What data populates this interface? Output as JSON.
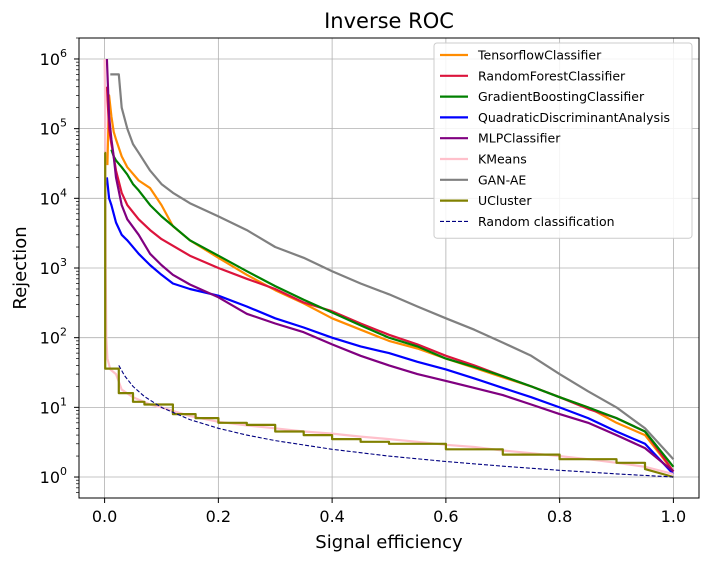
{
  "chart_data": {
    "type": "line",
    "title": "Inverse ROC",
    "xlabel": "Signal efficiency",
    "ylabel": "Rejection",
    "xlim": [
      -0.045,
      1.045
    ],
    "ylim": [
      0.5,
      2000000
    ],
    "yscale": "log",
    "grid": true,
    "legend_position": "top-right",
    "x_ticks": [
      {
        "value": 0.0,
        "label": "0.0"
      },
      {
        "value": 0.2,
        "label": "0.2"
      },
      {
        "value": 0.4,
        "label": "0.4"
      },
      {
        "value": 0.6,
        "label": "0.6"
      },
      {
        "value": 0.8,
        "label": "0.8"
      },
      {
        "value": 1.0,
        "label": "1.0"
      }
    ],
    "y_ticks": [
      {
        "value": 1,
        "base": "10",
        "exp": "0"
      },
      {
        "value": 10,
        "base": "10",
        "exp": "1"
      },
      {
        "value": 100,
        "base": "10",
        "exp": "2"
      },
      {
        "value": 1000,
        "base": "10",
        "exp": "3"
      },
      {
        "value": 10000,
        "base": "10",
        "exp": "4"
      },
      {
        "value": 100000,
        "base": "10",
        "exp": "5"
      },
      {
        "value": 1000000,
        "base": "10",
        "exp": "6"
      }
    ],
    "series": [
      {
        "name": "TensorflowClassifier",
        "color": "#ff8c00",
        "dash": "solid",
        "x": [
          0.005,
          0.008,
          0.012,
          0.016,
          0.02,
          0.03,
          0.04,
          0.06,
          0.08,
          0.1,
          0.12,
          0.15,
          0.2,
          0.25,
          0.3,
          0.35,
          0.4,
          0.45,
          0.5,
          0.55,
          0.6,
          0.65,
          0.7,
          0.75,
          0.8,
          0.85,
          0.9,
          0.95,
          1.0
        ],
        "y": [
          30000,
          300000,
          150000,
          90000,
          70000,
          40000,
          28000,
          18000,
          14000,
          8000,
          4000,
          2500,
          1400,
          800,
          480,
          310,
          190,
          130,
          90,
          70,
          50,
          37,
          27,
          20,
          14,
          10,
          6,
          4,
          1.2
        ]
      },
      {
        "name": "RandomForestClassifier",
        "color": "#dc143c",
        "dash": "solid",
        "x": [
          0.004,
          0.008,
          0.012,
          0.016,
          0.02,
          0.03,
          0.04,
          0.06,
          0.08,
          0.1,
          0.15,
          0.2,
          0.25,
          0.3,
          0.35,
          0.4,
          0.45,
          0.5,
          0.55,
          0.6,
          0.65,
          0.7,
          0.75,
          0.8,
          0.85,
          0.9,
          0.95,
          1.0
        ],
        "y": [
          400000,
          100000,
          60000,
          40000,
          25000,
          12000,
          8000,
          5000,
          3500,
          2600,
          1500,
          1000,
          700,
          500,
          320,
          240,
          160,
          110,
          80,
          55,
          40,
          28,
          20,
          14,
          9.5,
          7,
          4.5,
          1.2
        ]
      },
      {
        "name": "GradientBoostingClassifier",
        "color": "#008000",
        "dash": "solid",
        "x": [
          0.012,
          0.016,
          0.02,
          0.03,
          0.04,
          0.05,
          0.06,
          0.08,
          0.1,
          0.15,
          0.2,
          0.25,
          0.3,
          0.35,
          0.4,
          0.45,
          0.5,
          0.55,
          0.6,
          0.65,
          0.7,
          0.75,
          0.8,
          0.85,
          0.9,
          0.95,
          1.0
        ],
        "y": [
          50000,
          40000,
          35000,
          28000,
          22000,
          16000,
          13000,
          8000,
          5500,
          2500,
          1500,
          900,
          550,
          350,
          230,
          150,
          100,
          75,
          50,
          38,
          28,
          20,
          14,
          10,
          7,
          4.5,
          1.4
        ]
      },
      {
        "name": "QuadraticDiscriminantAnalysis",
        "color": "#0000ff",
        "dash": "solid",
        "x": [
          0.004,
          0.008,
          0.012,
          0.016,
          0.02,
          0.03,
          0.04,
          0.06,
          0.08,
          0.1,
          0.12,
          0.15,
          0.2,
          0.25,
          0.3,
          0.35,
          0.4,
          0.45,
          0.5,
          0.55,
          0.6,
          0.65,
          0.7,
          0.75,
          0.8,
          0.85,
          0.9,
          0.95,
          1.0
        ],
        "y": [
          20000,
          10000,
          8000,
          6000,
          4500,
          3000,
          2500,
          1600,
          1100,
          800,
          600,
          500,
          400,
          280,
          190,
          140,
          100,
          75,
          60,
          45,
          35,
          26,
          19,
          14,
          10,
          7,
          4.5,
          3,
          1.1
        ]
      },
      {
        "name": "MLPClassifier",
        "color": "#800080",
        "dash": "solid",
        "x": [
          0.004,
          0.008,
          0.012,
          0.016,
          0.02,
          0.03,
          0.04,
          0.06,
          0.08,
          0.1,
          0.12,
          0.15,
          0.2,
          0.25,
          0.3,
          0.35,
          0.4,
          0.45,
          0.5,
          0.55,
          0.6,
          0.65,
          0.7,
          0.75,
          0.8,
          0.85,
          0.9,
          0.95,
          1.0
        ],
        "y": [
          1000000,
          150000,
          70000,
          40000,
          20000,
          8000,
          5000,
          3000,
          1600,
          1100,
          800,
          580,
          380,
          220,
          160,
          120,
          80,
          55,
          40,
          30,
          24,
          19,
          15,
          11,
          8,
          6,
          4,
          2.6,
          1.2
        ]
      },
      {
        "name": "KMeans",
        "color": "#ffc0cb",
        "dash": "solid",
        "x": [
          0.0,
          0.001,
          0.002,
          0.003,
          0.005,
          0.01,
          0.02,
          0.03,
          0.05,
          0.08,
          0.1,
          0.15,
          0.2,
          0.25,
          0.3,
          0.35,
          0.4,
          0.45,
          0.5,
          0.55,
          0.6,
          0.65,
          0.7,
          0.75,
          0.8,
          0.85,
          0.9,
          0.95,
          1.0
        ],
        "y": [
          1000000,
          200000,
          1000,
          100,
          50,
          35,
          30,
          18,
          14,
          11,
          10,
          7.5,
          6.2,
          5.5,
          5,
          4.5,
          4.2,
          3.8,
          3.5,
          3.2,
          2.9,
          2.7,
          2.4,
          2.2,
          2,
          1.8,
          1.6,
          1.4,
          1.1
        ]
      },
      {
        "name": "GAN-AE",
        "color": "#808080",
        "dash": "solid",
        "x": [
          0.01,
          0.012,
          0.02,
          0.025,
          0.03,
          0.04,
          0.05,
          0.06,
          0.08,
          0.1,
          0.12,
          0.15,
          0.2,
          0.25,
          0.3,
          0.35,
          0.4,
          0.45,
          0.5,
          0.55,
          0.6,
          0.65,
          0.7,
          0.75,
          0.8,
          0.85,
          0.9,
          0.95,
          1.0
        ],
        "y": [
          600000,
          600000,
          600000,
          600000,
          200000,
          100000,
          60000,
          45000,
          25000,
          16000,
          12000,
          8500,
          5500,
          3500,
          2000,
          1400,
          900,
          600,
          420,
          280,
          190,
          130,
          85,
          55,
          30,
          17,
          10,
          5,
          1.8
        ]
      },
      {
        "name": "UCluster",
        "color": "#808000",
        "dash": "solid",
        "x": [
          0.0,
          0.001,
          0.001,
          0.025,
          0.025,
          0.05,
          0.05,
          0.07,
          0.07,
          0.12,
          0.12,
          0.16,
          0.16,
          0.2,
          0.2,
          0.25,
          0.25,
          0.3,
          0.3,
          0.35,
          0.35,
          0.4,
          0.4,
          0.45,
          0.45,
          0.5,
          0.5,
          0.6,
          0.6,
          0.7,
          0.7,
          0.8,
          0.8,
          0.9,
          0.9,
          0.95,
          0.95,
          1.0
        ],
        "y": [
          45000,
          45000,
          36,
          36,
          16,
          16,
          12,
          12,
          11,
          11,
          8,
          8,
          7,
          7,
          6,
          6,
          5.6,
          5.6,
          4.5,
          4.5,
          4,
          4,
          3.5,
          3.5,
          3.2,
          3.2,
          3,
          3,
          2.5,
          2.5,
          2.1,
          2.1,
          1.8,
          1.8,
          1.6,
          1.6,
          1.3,
          1.0
        ]
      },
      {
        "name": "Random classification",
        "color": "#000080",
        "dash": "dashed",
        "x": [
          0.025,
          0.035,
          0.05,
          0.07,
          0.1,
          0.15,
          0.2,
          0.25,
          0.3,
          0.4,
          0.5,
          0.6,
          0.7,
          0.8,
          0.9,
          1.0
        ],
        "y": [
          40,
          28.6,
          20,
          14.3,
          10,
          6.67,
          5,
          4,
          3.33,
          2.5,
          2,
          1.67,
          1.43,
          1.25,
          1.11,
          1.0
        ]
      }
    ]
  }
}
